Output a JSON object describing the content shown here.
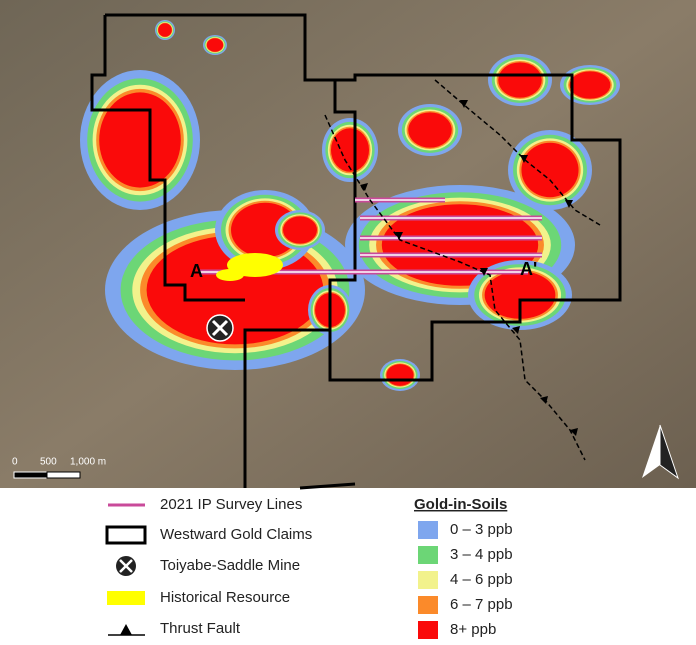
{
  "map": {
    "section_labels": [
      "A",
      "A'"
    ],
    "scale_bar": [
      "0",
      "500",
      "1,000 m"
    ]
  },
  "legend": {
    "items": [
      "2021 IP Survey Lines",
      "Westward Gold Claims",
      "Toiyabe-Saddle Mine",
      "Historical Resource",
      "Thrust Fault"
    ],
    "gold_title": "Gold-in-Soils",
    "gold_classes": [
      {
        "label": "0 – 3 ppb",
        "color": "#7ea6ee"
      },
      {
        "label": "3 – 4 ppb",
        "color": "#6cd676"
      },
      {
        "label": "4 – 6 ppb",
        "color": "#f2f28c"
      },
      {
        "label": "6 – 7 ppb",
        "color": "#fb8a2a"
      },
      {
        "label": "8+ ppb",
        "color": "#fa0a0a"
      }
    ]
  }
}
